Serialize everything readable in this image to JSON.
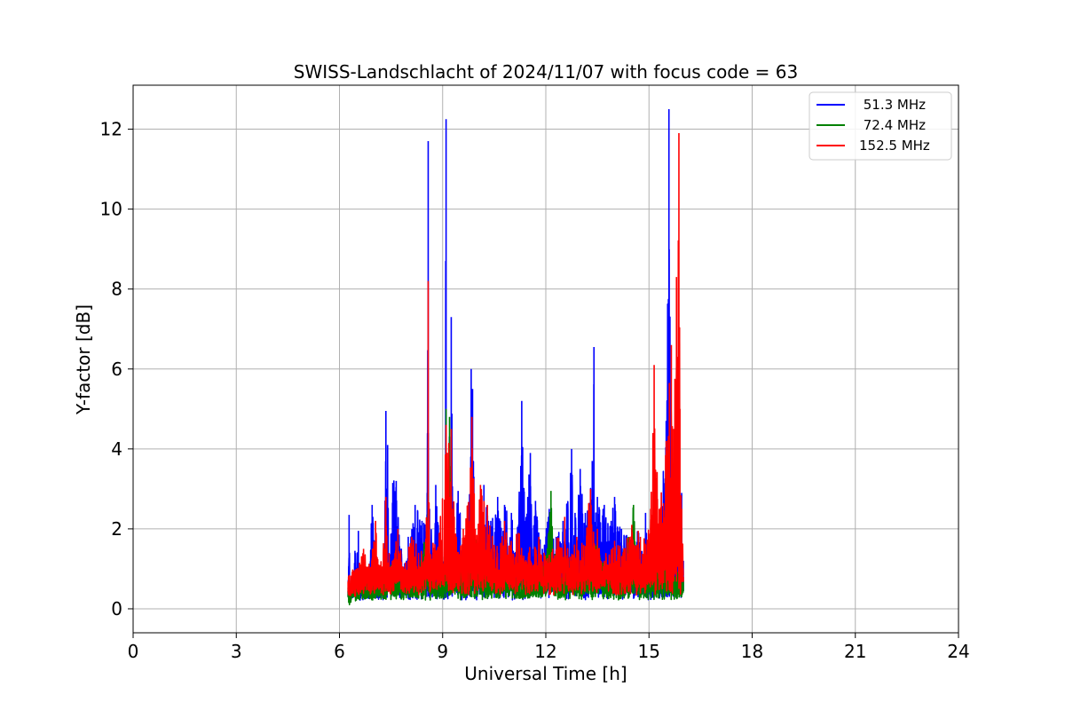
{
  "chart_data": {
    "type": "line",
    "title": "SWISS-Landschlacht of 2024/11/07 with focus code = 63",
    "xlabel": "Universal Time [h]",
    "ylabel": "Y-factor [dB]",
    "xlim": [
      0,
      24
    ],
    "ylim": [
      -0.6,
      13.1
    ],
    "xticks": [
      0,
      3,
      6,
      9,
      12,
      15,
      18,
      21,
      24
    ],
    "yticks": [
      0,
      2,
      4,
      6,
      8,
      10,
      12
    ],
    "grid": true,
    "legend_position": "top-right",
    "data_range_x": [
      6.25,
      16.0
    ],
    "series": [
      {
        "name": " 51.3 MHz",
        "color": "#0000ff",
        "points": [
          [
            6.25,
            0.4
          ],
          [
            6.28,
            2.35
          ],
          [
            6.31,
            0.3
          ],
          [
            6.45,
            1.45
          ],
          [
            6.55,
            1.95
          ],
          [
            6.6,
            0.5
          ],
          [
            6.8,
            0.6
          ],
          [
            6.95,
            2.6
          ],
          [
            7.1,
            0.8
          ],
          [
            7.3,
            1.0
          ],
          [
            7.35,
            4.95
          ],
          [
            7.4,
            4.1
          ],
          [
            7.45,
            1.2
          ],
          [
            7.55,
            3.15
          ],
          [
            7.65,
            3.2
          ],
          [
            7.8,
            1.5
          ],
          [
            8.0,
            1.8
          ],
          [
            8.2,
            2.6
          ],
          [
            8.4,
            2.2
          ],
          [
            8.55,
            2.9
          ],
          [
            8.58,
            11.7
          ],
          [
            8.62,
            2.5
          ],
          [
            8.75,
            1.2
          ],
          [
            8.8,
            3.1
          ],
          [
            8.95,
            1.5
          ],
          [
            9.05,
            1.2
          ],
          [
            9.1,
            12.25
          ],
          [
            9.15,
            2.0
          ],
          [
            9.25,
            7.3
          ],
          [
            9.3,
            1.8
          ],
          [
            9.45,
            2.95
          ],
          [
            9.6,
            1.5
          ],
          [
            9.75,
            1.8
          ],
          [
            9.83,
            6.0
          ],
          [
            9.87,
            5.5
          ],
          [
            9.95,
            1.2
          ],
          [
            10.2,
            3.1
          ],
          [
            10.4,
            2.2
          ],
          [
            10.6,
            2.8
          ],
          [
            10.8,
            2.6
          ],
          [
            11.0,
            2.4
          ],
          [
            11.15,
            1.5
          ],
          [
            11.3,
            5.2
          ],
          [
            11.4,
            2.2
          ],
          [
            11.55,
            3.9
          ],
          [
            11.7,
            2.7
          ],
          [
            11.9,
            1.5
          ],
          [
            12.1,
            2.5
          ],
          [
            12.3,
            1.8
          ],
          [
            12.5,
            2.2
          ],
          [
            12.75,
            4.0
          ],
          [
            12.85,
            2.4
          ],
          [
            13.0,
            3.5
          ],
          [
            13.15,
            2.4
          ],
          [
            13.35,
            3.7
          ],
          [
            13.4,
            6.55
          ],
          [
            13.5,
            2.8
          ],
          [
            13.7,
            2.6
          ],
          [
            13.9,
            2.2
          ],
          [
            14.0,
            2.8
          ],
          [
            14.2,
            2.0
          ],
          [
            14.5,
            2.0
          ],
          [
            14.7,
            1.9
          ],
          [
            14.9,
            2.4
          ],
          [
            15.1,
            1.0
          ],
          [
            15.3,
            2.0
          ],
          [
            15.5,
            4.7
          ],
          [
            15.58,
            12.5
          ],
          [
            15.65,
            3.0
          ],
          [
            15.8,
            1.5
          ],
          [
            15.95,
            2.9
          ],
          [
            16.0,
            1.2
          ]
        ]
      },
      {
        "name": " 72.4 MHz",
        "color": "#008000",
        "points": [
          [
            6.25,
            0.3
          ],
          [
            6.5,
            0.5
          ],
          [
            6.8,
            0.6
          ],
          [
            7.0,
            0.8
          ],
          [
            7.2,
            0.7
          ],
          [
            7.5,
            1.1
          ],
          [
            7.8,
            0.7
          ],
          [
            8.0,
            0.8
          ],
          [
            8.3,
            0.7
          ],
          [
            8.58,
            2.9
          ],
          [
            8.62,
            0.7
          ],
          [
            8.9,
            1.0
          ],
          [
            9.05,
            1.3
          ],
          [
            9.1,
            5.0
          ],
          [
            9.15,
            1.2
          ],
          [
            9.2,
            4.8
          ],
          [
            9.3,
            1.2
          ],
          [
            9.6,
            1.1
          ],
          [
            9.85,
            2.6
          ],
          [
            10.2,
            1.2
          ],
          [
            10.5,
            0.8
          ],
          [
            10.8,
            1.1
          ],
          [
            11.0,
            0.9
          ],
          [
            11.3,
            0.8
          ],
          [
            11.6,
            0.7
          ],
          [
            11.9,
            1.0
          ],
          [
            12.15,
            2.95
          ],
          [
            12.3,
            0.9
          ],
          [
            12.7,
            1.2
          ],
          [
            12.9,
            0.8
          ],
          [
            13.2,
            0.9
          ],
          [
            13.5,
            1.8
          ],
          [
            13.8,
            0.8
          ],
          [
            14.1,
            1.0
          ],
          [
            14.4,
            1.8
          ],
          [
            14.55,
            2.6
          ],
          [
            14.7,
            1.0
          ],
          [
            15.0,
            1.2
          ],
          [
            15.3,
            1.8
          ],
          [
            15.5,
            2.2
          ],
          [
            15.7,
            1.0
          ],
          [
            16.0,
            0.7
          ]
        ]
      },
      {
        "name": "152.5 MHz",
        "color": "#ff0000",
        "points": [
          [
            6.25,
            0.5
          ],
          [
            6.3,
            0.7
          ],
          [
            6.5,
            0.8
          ],
          [
            6.7,
            1.5
          ],
          [
            6.9,
            0.9
          ],
          [
            7.05,
            2.2
          ],
          [
            7.2,
            1.0
          ],
          [
            7.35,
            2.8
          ],
          [
            7.5,
            1.0
          ],
          [
            7.7,
            2.0
          ],
          [
            7.9,
            1.0
          ],
          [
            8.1,
            1.8
          ],
          [
            8.3,
            1.4
          ],
          [
            8.5,
            1.5
          ],
          [
            8.58,
            8.2
          ],
          [
            8.62,
            1.4
          ],
          [
            8.9,
            1.9
          ],
          [
            9.1,
            4.6
          ],
          [
            9.25,
            4.5
          ],
          [
            9.4,
            1.8
          ],
          [
            9.6,
            2.0
          ],
          [
            9.85,
            4.8
          ],
          [
            9.95,
            2.0
          ],
          [
            10.1,
            3.1
          ],
          [
            10.3,
            2.6
          ],
          [
            10.5,
            1.6
          ],
          [
            10.8,
            2.2
          ],
          [
            11.0,
            1.5
          ],
          [
            11.2,
            1.9
          ],
          [
            11.5,
            1.4
          ],
          [
            11.8,
            1.8
          ],
          [
            12.0,
            1.2
          ],
          [
            12.2,
            1.5
          ],
          [
            12.55,
            2.3
          ],
          [
            12.7,
            1.3
          ],
          [
            12.9,
            1.8
          ],
          [
            13.1,
            1.6
          ],
          [
            13.3,
            3.0
          ],
          [
            13.5,
            2.0
          ],
          [
            13.7,
            1.2
          ],
          [
            14.0,
            1.7
          ],
          [
            14.3,
            1.4
          ],
          [
            14.5,
            2.1
          ],
          [
            14.75,
            1.8
          ],
          [
            14.9,
            1.6
          ],
          [
            15.05,
            2.5
          ],
          [
            15.15,
            6.1
          ],
          [
            15.3,
            2.5
          ],
          [
            15.5,
            4.2
          ],
          [
            15.65,
            6.6
          ],
          [
            15.72,
            4.5
          ],
          [
            15.8,
            8.3
          ],
          [
            15.87,
            11.9
          ],
          [
            15.9,
            5.0
          ],
          [
            15.95,
            2.5
          ],
          [
            16.0,
            0.8
          ]
        ]
      }
    ]
  }
}
